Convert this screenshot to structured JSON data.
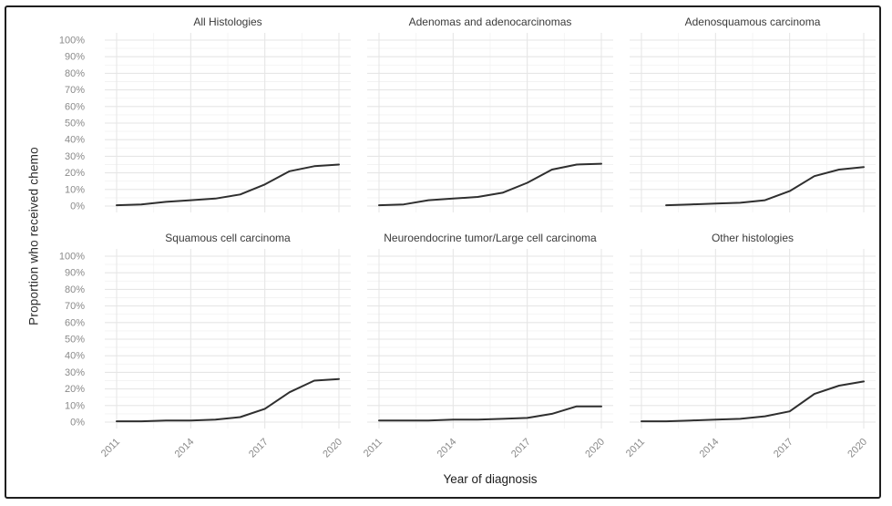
{
  "frame": {
    "border_color": "#1f1f1f",
    "background": "#ffffff"
  },
  "axes": {
    "y_title": "Proportion who received chemo",
    "x_title": "Year of diagnosis"
  },
  "colors": {
    "line": "#2f2f2f",
    "grid_major": "#e6e6e6",
    "grid_minor": "#f3f3f3",
    "tick_label": "#8a8a8a",
    "facet_title": "#3a3a3a",
    "axis_title": "#1c1c1c"
  },
  "chart_data": {
    "type": "line",
    "title": "",
    "xlabel": "Year of diagnosis",
    "ylabel": "Proportion who received chemo",
    "x": [
      2011,
      2012,
      2013,
      2014,
      2015,
      2016,
      2017,
      2018,
      2019,
      2020
    ],
    "x_major_ticks": [
      2011,
      2014,
      2017,
      2020
    ],
    "x_tick_labels": [
      "2011",
      "2014",
      "2017",
      "2020"
    ],
    "x_minor_ticks": [
      2012.5,
      2015.5,
      2018.5
    ],
    "ylim": [
      0,
      100
    ],
    "y_major_ticks": [
      0,
      10,
      20,
      30,
      40,
      50,
      60,
      70,
      80,
      90,
      100
    ],
    "y_tick_labels": [
      "0%",
      "10%",
      "20%",
      "30%",
      "40%",
      "50%",
      "60%",
      "70%",
      "80%",
      "90%",
      "100%"
    ],
    "y_minor_ticks": [
      5,
      15,
      25,
      35,
      45,
      55,
      65,
      75,
      85,
      95
    ],
    "grid": "major+minor",
    "legend": "none",
    "unit": "percent",
    "facet_layout": {
      "rows": 2,
      "cols": 3
    },
    "facets": [
      {
        "label": "All Histologies",
        "values": [
          0.5,
          1,
          2.5,
          3.5,
          4.5,
          7,
          13,
          21,
          24,
          25
        ]
      },
      {
        "label": "Adenomas and adenocarcinomas",
        "values": [
          0.5,
          1,
          3.5,
          4.5,
          5.5,
          8,
          14,
          22,
          25,
          25.5
        ]
      },
      {
        "label": "Adenosquamous carcinoma",
        "values": [
          null,
          0.5,
          1,
          1.5,
          2,
          3.5,
          9,
          18,
          22,
          23.5
        ]
      },
      {
        "label": "Squamous cell carcinoma",
        "values": [
          0.5,
          0.5,
          1,
          1,
          1.5,
          3,
          8,
          18,
          25,
          26
        ]
      },
      {
        "label": "Neuroendocrine tumor/Large cell carcinoma",
        "values": [
          1,
          1,
          1,
          1.5,
          1.5,
          2,
          2.5,
          5,
          9.5,
          9.5
        ]
      },
      {
        "label": "Other histologies",
        "values": [
          0.5,
          0.5,
          1,
          1.5,
          2,
          3.5,
          6.5,
          17,
          22,
          24.5
        ]
      }
    ]
  }
}
